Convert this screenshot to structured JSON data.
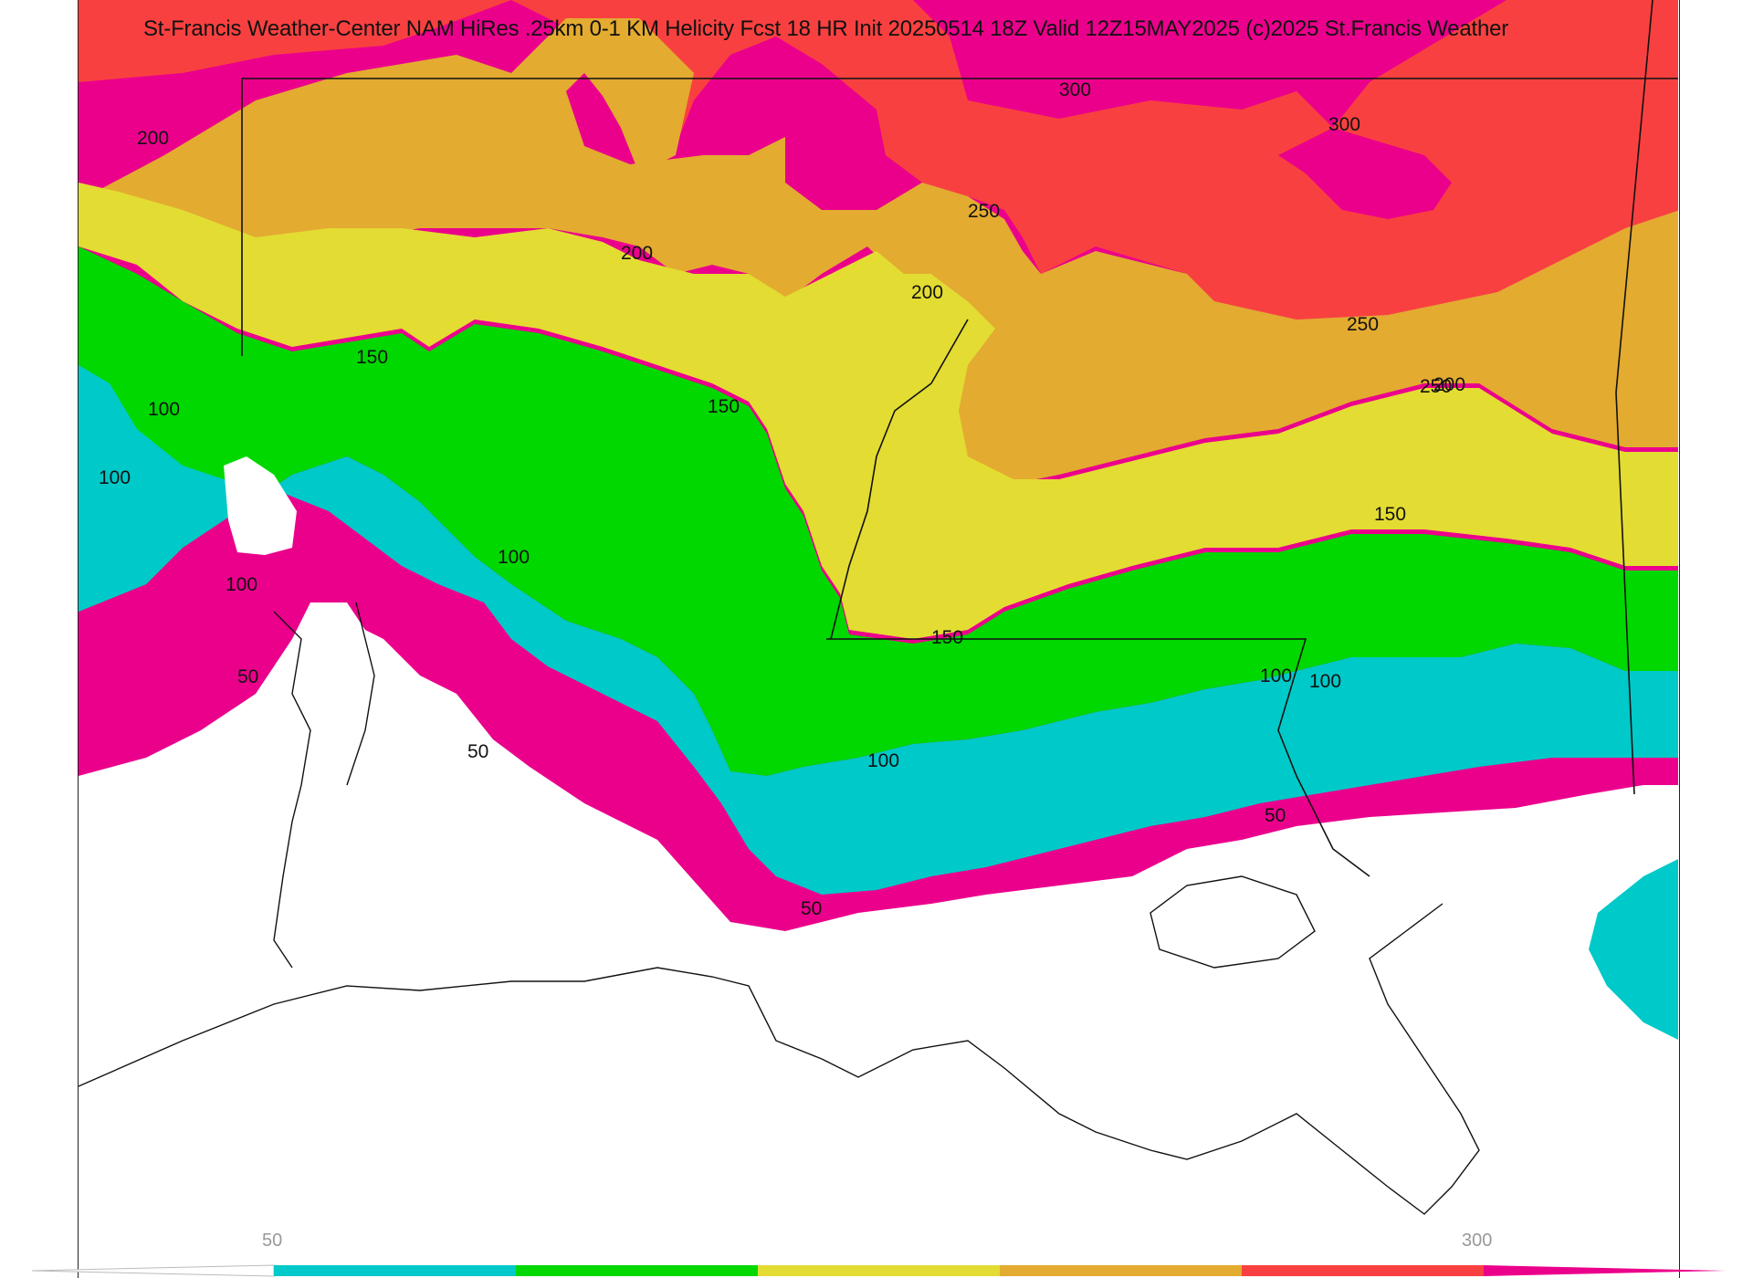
{
  "title": "St-Francis Weather-Center NAM HiRes .25km 0-1 KM Helicity Fcst 18 HR Init 20250514 18Z  Valid 12Z15MAY2025   (c)2025 St.Francis Weather",
  "colors": {
    "lt50": "#ffffff",
    "c50_100": "#00c9c9",
    "c100_150": "#00d800",
    "c150_200": "#e3dc33",
    "c200_250": "#e3ab30",
    "c250_300": "#f94040",
    "c300p": "#eb008c",
    "boundary": "#111111",
    "county": "#bbbbbb"
  },
  "contour_labels": [
    "200",
    "250",
    "300",
    "300",
    "250",
    "200",
    "200",
    "250",
    "200",
    "150",
    "150",
    "150",
    "100",
    "100",
    "100",
    "100",
    "100",
    "150",
    "100",
    "50",
    "50",
    "100",
    "50",
    "50"
  ],
  "colorbar": {
    "ticks": [
      "50",
      "300"
    ]
  }
}
